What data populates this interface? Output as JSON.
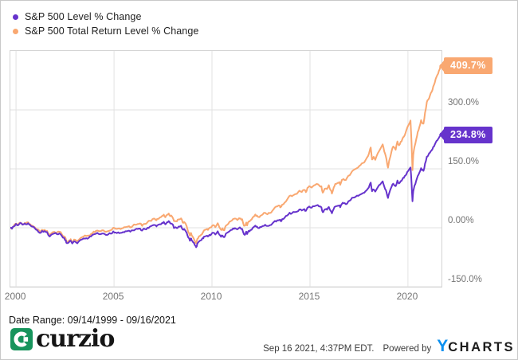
{
  "legend": {
    "items": [
      {
        "label": "S&P 500 Level % Change",
        "color": "#6633cc"
      },
      {
        "label": "S&P 500 Total Return Level % Change",
        "color": "#f9a871"
      }
    ]
  },
  "chart_data": {
    "type": "line",
    "title": "",
    "grid": true,
    "x_axis": {
      "range": [
        1999.71,
        2021.71
      ],
      "ticks": [
        2000,
        2005,
        2010,
        2015,
        2020
      ],
      "tick_labels": [
        "2000",
        "2005",
        "2010",
        "2015",
        "2020"
      ]
    },
    "y_axis": {
      "range": [
        -150,
        450
      ],
      "unit": "%",
      "tick_values": [
        300,
        150,
        0,
        -150
      ],
      "tick_labels": [
        "300.0%",
        "150.0%",
        "0.00%",
        "-150.0%"
      ],
      "label_position": "right"
    },
    "x_years": [
      1999.71,
      1999.79,
      1999.87,
      2000.0,
      2000.1,
      2000.21,
      2000.33,
      2000.45,
      2000.5,
      2000.62,
      2000.71,
      2000.83,
      2000.96,
      2001.08,
      2001.21,
      2001.33,
      2001.46,
      2001.58,
      2001.71,
      2001.79,
      2001.96,
      2002.08,
      2002.21,
      2002.33,
      2002.46,
      2002.54,
      2002.58,
      2002.71,
      2002.79,
      2002.87,
      2002.96,
      2003.08,
      2003.17,
      2003.29,
      2003.46,
      2003.58,
      2003.71,
      2003.83,
      2003.96,
      2004.08,
      2004.21,
      2004.33,
      2004.46,
      2004.58,
      2004.71,
      2004.83,
      2004.96,
      2005.08,
      2005.21,
      2005.33,
      2005.46,
      2005.58,
      2005.71,
      2005.83,
      2005.96,
      2006.08,
      2006.21,
      2006.33,
      2006.42,
      2006.46,
      2006.58,
      2006.71,
      2006.83,
      2006.96,
      2007.08,
      2007.17,
      2007.21,
      2007.33,
      2007.46,
      2007.54,
      2007.62,
      2007.71,
      2007.79,
      2007.87,
      2007.96,
      2008.04,
      2008.08,
      2008.21,
      2008.29,
      2008.42,
      2008.5,
      2008.58,
      2008.71,
      2008.79,
      2008.87,
      2008.92,
      2008.96,
      2009.04,
      2009.12,
      2009.19,
      2009.25,
      2009.33,
      2009.46,
      2009.54,
      2009.58,
      2009.71,
      2009.79,
      2009.87,
      2009.96,
      2010.08,
      2010.17,
      2010.29,
      2010.37,
      2010.46,
      2010.54,
      2010.63,
      2010.71,
      2010.83,
      2010.96,
      2011.08,
      2011.17,
      2011.29,
      2011.38,
      2011.46,
      2011.54,
      2011.63,
      2011.71,
      2011.75,
      2011.79,
      2011.87,
      2011.96,
      2012.08,
      2012.21,
      2012.29,
      2012.42,
      2012.46,
      2012.58,
      2012.71,
      2012.83,
      2012.96,
      2013.08,
      2013.21,
      2013.33,
      2013.46,
      2013.5,
      2013.58,
      2013.71,
      2013.83,
      2013.96,
      2014.08,
      2014.21,
      2014.33,
      2014.46,
      2014.58,
      2014.71,
      2014.79,
      2014.87,
      2014.96,
      2015.08,
      2015.21,
      2015.33,
      2015.46,
      2015.58,
      2015.65,
      2015.71,
      2015.79,
      2015.87,
      2015.96,
      2016.04,
      2016.12,
      2016.21,
      2016.29,
      2016.42,
      2016.5,
      2016.54,
      2016.63,
      2016.71,
      2016.83,
      2016.96,
      2017.08,
      2017.21,
      2017.33,
      2017.46,
      2017.58,
      2017.71,
      2017.83,
      2017.96,
      2018.04,
      2018.1,
      2018.17,
      2018.25,
      2018.33,
      2018.46,
      2018.58,
      2018.71,
      2018.79,
      2018.87,
      2018.94,
      2018.98,
      2019.04,
      2019.17,
      2019.25,
      2019.37,
      2019.46,
      2019.54,
      2019.63,
      2019.71,
      2019.79,
      2019.87,
      2019.96,
      2020.04,
      2020.13,
      2020.18,
      2020.23,
      2020.27,
      2020.33,
      2020.42,
      2020.5,
      2020.58,
      2020.67,
      2020.71,
      2020.79,
      2020.87,
      2020.96,
      2021.04,
      2021.12,
      2021.21,
      2021.29,
      2021.37,
      2021.46,
      2021.54,
      2021.62,
      2021.67,
      2021.71
    ],
    "series": [
      {
        "name": "S&P 500 Level % Change",
        "color": "#6633cc",
        "end_label": "234.8%",
        "end_value": 234.8,
        "values": [
          0,
          -2.5,
          3,
          9.9,
          6,
          12.2,
          8,
          11,
          8.9,
          11.5,
          7.5,
          3,
          -1.2,
          -6,
          -13.2,
          -8,
          -8.4,
          -11,
          -22.1,
          -18,
          -14.1,
          -16,
          -14.2,
          -20,
          -25.9,
          -32,
          -39,
          -36,
          -33,
          -40,
          -34.2,
          -38,
          -36.5,
          -31,
          -27,
          -26.5,
          -25.5,
          -22,
          -16.8,
          -15,
          -15.7,
          -16,
          -14.6,
          -18,
          -16.6,
          -15,
          -9.3,
          -12,
          -11.6,
          -13,
          -10.9,
          -9,
          -8,
          -10,
          -6.6,
          -4.5,
          -3.1,
          -2,
          -7,
          -5,
          -3.5,
          0,
          3,
          6.1,
          7,
          3.5,
          6.3,
          9,
          12.5,
          15,
          9,
          14.3,
          17.1,
          11,
          9.9,
          3,
          0,
          -1,
          3,
          5,
          -4.2,
          -3,
          -12.7,
          -25,
          -33,
          -27,
          -32.4,
          -37,
          -44,
          -49.4,
          -40.3,
          -35,
          -31.2,
          -26,
          -23,
          -20.9,
          -22,
          -18,
          -16.6,
          -12.5,
          -17,
          -8.9,
          -17,
          -22.9,
          -20,
          -24,
          -14.6,
          -11,
          -5.9,
          -1.5,
          -0.8,
          -4,
          -0.5,
          -1.2,
          -3,
          -16.3,
          -15.4,
          -10,
          -16,
          -8,
          -5.9,
          0,
          5.4,
          3,
          -0.5,
          1.9,
          4.5,
          7.8,
          4.5,
          6.7,
          11,
          17.4,
          19,
          20.2,
          17,
          22,
          25.9,
          31,
          38.3,
          37,
          40.1,
          41,
          46.7,
          44,
          47.6,
          43,
          51,
          54.1,
          51,
          54.8,
          57,
          54.4,
          52,
          39.8,
          43.7,
          47,
          46,
          53,
          44,
          36.9,
          48,
          54.2,
          56,
          57.1,
          52,
          61,
          62.2,
          60,
          67.6,
          71,
          76.8,
          79,
          81.3,
          85,
          88.5,
          93,
          100.1,
          109,
          115,
          93,
          97.6,
          92,
          103.4,
          110,
          118.1,
          105,
          96,
          82,
          75.9,
          87.6,
          105,
          112.1,
          106,
          120.2,
          113,
          119,
          122.8,
          127,
          133,
          141.8,
          147,
          153.4,
          115,
          67.4,
          93.4,
          107,
          120,
          132,
          140,
          151.7,
          147,
          145,
          163,
          181.1,
          185,
          191,
          197.3,
          206,
          212,
          221.6,
          226,
          233,
          239.5,
          234.8
        ]
      },
      {
        "name": "S&P 500 Total Return Level % Change",
        "color": "#f9a871",
        "end_label": "409.7%",
        "end_value": 409.7,
        "values": [
          0,
          -2.3,
          3.3,
          10.6,
          6.8,
          13.3,
          9.3,
          12.6,
          10.5,
          13.5,
          9.5,
          5.3,
          1.2,
          -3.6,
          -10.7,
          -5.1,
          -5.3,
          -7.8,
          -19.1,
          -14.7,
          -10.4,
          -12.1,
          -10.1,
          -15.9,
          -22,
          -28.3,
          -35.6,
          -32.3,
          -29,
          -36.3,
          -30.1,
          -33.9,
          -32.2,
          -26.2,
          -21.6,
          -20.9,
          -19.6,
          -15.7,
          -9.8,
          -7.7,
          -8.2,
          -8.4,
          -6.6,
          -10.1,
          -8.3,
          -6.3,
          0.1,
          -2.6,
          -1.9,
          -3.3,
          -0.7,
          1.7,
          3,
          1.1,
          5.2,
          7.7,
          9.6,
          11.1,
          5.6,
          8,
          9.9,
          14.2,
          17.9,
          21.8,
          23.1,
          19.2,
          22.6,
          26,
          30.4,
          33.5,
          26.7,
          33,
          36.5,
          29.6,
          28.6,
          20.7,
          17.3,
          16.4,
          21.3,
          24,
          13.3,
          14.8,
          3.6,
          -10.8,
          -20.2,
          -13,
          -19.4,
          -24.7,
          -33,
          -39.3,
          -28.4,
          -21.9,
          -17.1,
          -10.7,
          -7,
          -4.2,
          -5.4,
          -0.4,
          1.5,
          6.8,
          1.4,
          11.6,
          1.8,
          -5.2,
          -1.5,
          -6.3,
          5.5,
          10.2,
          16.8,
          22.4,
          23.6,
          19.8,
          24.5,
          23.7,
          21.6,
          5.1,
          6.4,
          13.3,
          5.8,
          16.1,
          18.9,
          26.7,
          33.9,
          31,
          26.9,
          30,
          33.7,
          38.2,
          34.3,
          37.4,
          43.3,
          51.9,
          54.3,
          56.3,
          52.2,
          59,
          64.4,
          71.5,
          81.4,
          80.2,
          84.7,
          86.3,
          94.4,
          91.2,
          96.5,
          90.6,
          101.6,
          106,
          102.3,
          108.1,
          111.5,
          108.4,
          105.7,
          89.4,
          95,
          99.8,
          98.7,
          108.5,
          96.6,
          87.1,
          102.8,
          111.6,
          114.5,
          116.3,
          109.5,
          122.2,
          124.2,
          121.6,
          132.6,
          137.9,
          146.5,
          150.1,
          153.8,
          159.6,
          165,
          171.9,
          182.5,
          195.5,
          204.4,
          173.7,
          180.6,
          173,
          189.8,
          199.9,
          212.3,
          194,
          181.5,
          161.7,
          153.1,
          170.3,
          196,
          206.9,
          198.7,
          219.7,
          209.9,
          219.1,
          225.3,
          231.9,
          241.1,
          254.7,
          262.8,
          273,
          216.7,
          146.7,
          185.3,
          205.7,
          225.4,
          243.8,
          256.2,
          274,
          267.3,
          265.1,
          292.4,
          319.9,
          326.4,
          336.2,
          346.2,
          359.9,
          369.6,
          384.9,
          392.3,
          403.5,
          414,
          409.7
        ]
      }
    ]
  },
  "footer": {
    "date_range": "Date Range: 09/14/1999 - 09/16/2021",
    "logo_text": "curzio",
    "logo_color": "#17945c",
    "timestamp": "Sep 16 2021, 4:37PM EDT.",
    "powered_by": "Powered by",
    "ycharts_y": "Y",
    "ycharts_rest": "CHARTS",
    "ycharts_y_color": "#0b90f0"
  }
}
